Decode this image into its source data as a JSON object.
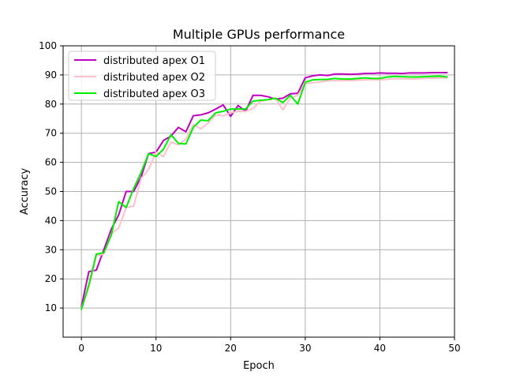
{
  "chart_data": {
    "type": "line",
    "title": "Multiple GPUs performance",
    "xlabel": "Epoch",
    "ylabel": "Accuracy",
    "xlim": [
      -2.45,
      50
    ],
    "ylim": [
      0,
      100
    ],
    "xticks": [
      0,
      10,
      20,
      30,
      40,
      50
    ],
    "yticks": [
      10,
      20,
      30,
      40,
      50,
      60,
      70,
      80,
      90,
      100
    ],
    "grid": true,
    "legend_position": "upper-left",
    "x": [
      0,
      1,
      2,
      3,
      4,
      5,
      6,
      7,
      8,
      9,
      10,
      11,
      12,
      13,
      14,
      15,
      16,
      17,
      18,
      19,
      20,
      21,
      22,
      23,
      24,
      25,
      26,
      27,
      28,
      29,
      30,
      31,
      32,
      33,
      34,
      35,
      36,
      37,
      38,
      39,
      40,
      41,
      42,
      43,
      44,
      45,
      46,
      47,
      48,
      49
    ],
    "series": [
      {
        "name": "distributed apex O1",
        "color": "#bf00bf",
        "values": [
          10.5,
          22.5,
          23.0,
          30.0,
          37.0,
          42.0,
          50.0,
          50.0,
          55.0,
          63.0,
          63.5,
          67.5,
          69.0,
          72.0,
          70.5,
          76.0,
          76.3,
          77.0,
          78.3,
          79.7,
          75.8,
          79.5,
          77.5,
          83.0,
          83.0,
          82.5,
          81.7,
          82.0,
          83.5,
          83.7,
          89.0,
          89.7,
          90.0,
          89.8,
          90.3,
          90.3,
          90.2,
          90.3,
          90.5,
          90.5,
          90.7,
          90.6,
          90.6,
          90.5,
          90.7,
          90.7,
          90.7,
          90.8,
          90.8,
          90.8
        ]
      },
      {
        "name": "distributed apex O2",
        "color": "#ffc0cb",
        "values": [
          10.0,
          17.0,
          28.0,
          28.5,
          35.5,
          37.5,
          44.5,
          45.0,
          54.5,
          57.5,
          63.5,
          62.0,
          67.0,
          66.0,
          68.0,
          73.0,
          71.5,
          73.5,
          76.3,
          76.0,
          77.0,
          77.5,
          77.5,
          78.5,
          81.0,
          81.5,
          82.0,
          78.0,
          82.0,
          83.0,
          87.0,
          87.3,
          87.6,
          88.0,
          88.0,
          88.0,
          88.1,
          88.2,
          88.3,
          88.4,
          88.3,
          88.5,
          88.7,
          88.7,
          88.6,
          88.7,
          88.8,
          88.9,
          89.0,
          89.0
        ]
      },
      {
        "name": "distributed apex O3",
        "color": "#00ee00",
        "values": [
          9.5,
          18.0,
          28.5,
          29.0,
          35.0,
          46.5,
          44.5,
          51.0,
          56.5,
          63.0,
          62.0,
          64.5,
          69.5,
          66.5,
          66.3,
          72.0,
          74.5,
          74.3,
          77.0,
          77.5,
          78.3,
          78.3,
          78.3,
          81.0,
          81.3,
          81.5,
          82.0,
          80.5,
          83.0,
          80.0,
          87.5,
          88.3,
          88.4,
          88.5,
          88.8,
          88.6,
          88.6,
          88.8,
          89.0,
          88.8,
          88.8,
          89.3,
          89.5,
          89.4,
          89.3,
          89.3,
          89.4,
          89.5,
          89.6,
          89.3
        ]
      }
    ]
  }
}
